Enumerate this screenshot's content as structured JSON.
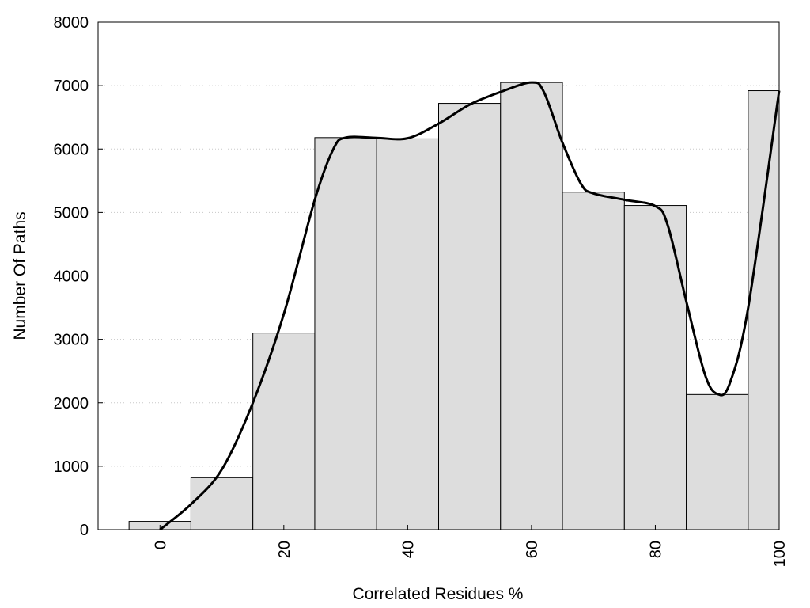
{
  "chart_data": {
    "type": "bar",
    "xlabel": "Correlated Residues %",
    "ylabel": "Number Of Paths",
    "xlim": [
      -10,
      100
    ],
    "ylim": [
      0,
      8000
    ],
    "x_ticks": [
      0,
      20,
      40,
      60,
      80,
      100
    ],
    "y_ticks": [
      0,
      1000,
      2000,
      3000,
      4000,
      5000,
      6000,
      7000,
      8000
    ],
    "grid": "horizontal dotted",
    "legend": "none",
    "bar_width": 10,
    "bars": [
      {
        "x": 0,
        "value": 130
      },
      {
        "x": 10,
        "value": 820
      },
      {
        "x": 20,
        "value": 3100
      },
      {
        "x": 30,
        "value": 6180
      },
      {
        "x": 40,
        "value": 6160
      },
      {
        "x": 50,
        "value": 6720
      },
      {
        "x": 60,
        "value": 7050
      },
      {
        "x": 70,
        "value": 5320
      },
      {
        "x": 80,
        "value": 5110
      },
      {
        "x": 90,
        "value": 2130
      },
      {
        "x": 100,
        "value": 6920
      }
    ],
    "curve": {
      "x": [
        0,
        5,
        10,
        15,
        20,
        25,
        28,
        30,
        35,
        40,
        45,
        50,
        55,
        60,
        62,
        65,
        68,
        70,
        75,
        80,
        82,
        85,
        88,
        90,
        92,
        95,
        100
      ],
      "y": [
        0,
        400,
        950,
        2000,
        3400,
        5200,
        6000,
        6180,
        6175,
        6170,
        6400,
        6700,
        6900,
        7050,
        6900,
        6100,
        5450,
        5300,
        5200,
        5100,
        4800,
        3600,
        2450,
        2140,
        2300,
        3500,
        6920
      ]
    },
    "colors": {
      "bar_fill": "#dddddd",
      "bar_stroke": "#000000",
      "curve": "#000000",
      "grid": "#c8c8c8"
    }
  }
}
